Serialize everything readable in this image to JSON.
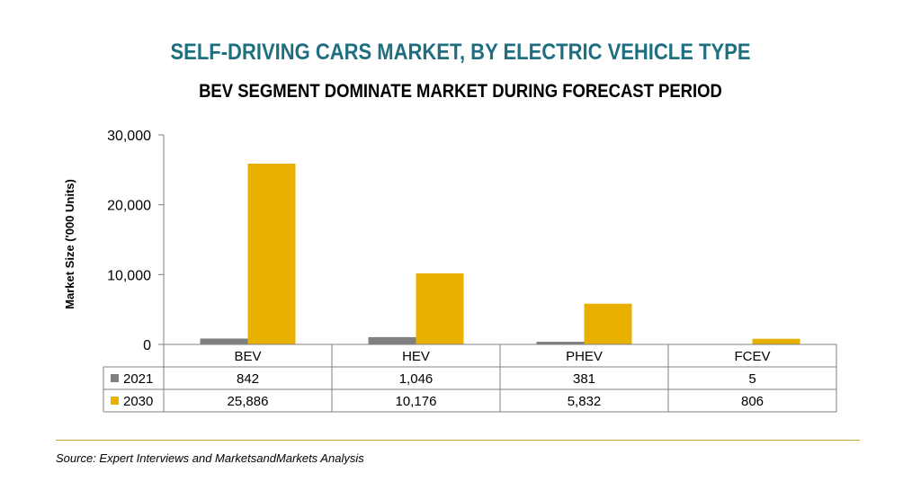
{
  "chart_data": {
    "type": "bar",
    "title": "SELF-DRIVING CARS MARKET, BY ELECTRIC VEHICLE TYPE",
    "subtitle": "BEV SEGMENT DOMINATE MARKET DURING FORECAST PERIOD",
    "ylabel": "Market Size ('000 Units)",
    "xlabel": "",
    "ylim": [
      0,
      30000
    ],
    "yticks": [
      0,
      10000,
      20000,
      30000
    ],
    "ytick_labels": [
      "0",
      "10,000",
      "20,000",
      "30,000"
    ],
    "categories": [
      "BEV",
      "HEV",
      "PHEV",
      "FCEV"
    ],
    "series": [
      {
        "name": "2021",
        "color": "#808080",
        "values": [
          842,
          1046,
          381,
          5
        ],
        "labels": [
          "842",
          "1,046",
          "381",
          "5"
        ]
      },
      {
        "name": "2030",
        "color": "#e8b100",
        "values": [
          25886,
          10176,
          5832,
          806
        ],
        "labels": [
          "25,886",
          "10,176",
          "5,832",
          "806"
        ]
      }
    ],
    "grid": false,
    "legend": "data-table"
  },
  "source": "Source: Expert Interviews and MarketsandMarkets Analysis"
}
